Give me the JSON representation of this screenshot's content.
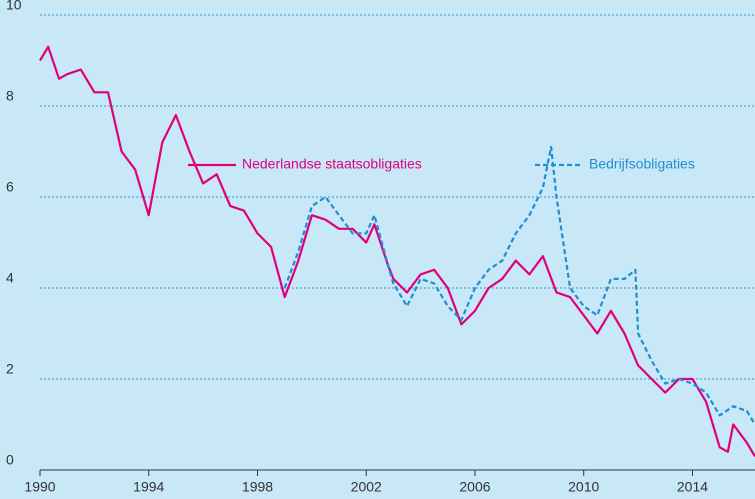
{
  "chart_data": {
    "type": "line",
    "xlim": [
      1990,
      2016.3
    ],
    "ylim": [
      0,
      10
    ],
    "xticks": [
      1990,
      1994,
      1998,
      2002,
      2006,
      2010,
      2014
    ],
    "yticks": [
      0,
      2,
      4,
      6,
      8,
      10
    ],
    "grid": true,
    "series": [
      {
        "name": "Nederlandse staatsobligaties",
        "color": "#e0007a",
        "dash": false,
        "x": [
          1990,
          1990.3,
          1990.7,
          1991,
          1991.5,
          1992,
          1992.5,
          1993,
          1993.5,
          1994,
          1994.5,
          1995,
          1995.5,
          1996,
          1996.5,
          1997,
          1997.5,
          1998,
          1998.5,
          1999,
          1999.5,
          2000,
          2000.5,
          2001,
          2001.5,
          2002,
          2002.3,
          2002.8,
          2003,
          2003.5,
          2004,
          2004.5,
          2005,
          2005.5,
          2006,
          2006.5,
          2007,
          2007.5,
          2008,
          2008.5,
          2009,
          2009.5,
          2010,
          2010.5,
          2011,
          2011.5,
          2012,
          2012.5,
          2013,
          2013.5,
          2014,
          2014.5,
          2015,
          2015.3,
          2015.5,
          2016,
          2016.3
        ],
        "values": [
          9.0,
          9.3,
          8.6,
          8.7,
          8.8,
          8.3,
          8.3,
          7.0,
          6.6,
          5.6,
          7.2,
          7.8,
          7.0,
          6.3,
          6.5,
          5.8,
          5.7,
          5.2,
          4.9,
          3.8,
          4.6,
          5.6,
          5.5,
          5.3,
          5.3,
          5.0,
          5.4,
          4.5,
          4.2,
          3.9,
          4.3,
          4.4,
          4.0,
          3.2,
          3.5,
          4.0,
          4.2,
          4.6,
          4.3,
          4.7,
          3.9,
          3.8,
          3.4,
          3.0,
          3.5,
          3.0,
          2.3,
          2.0,
          1.7,
          2.0,
          2.0,
          1.5,
          0.5,
          0.4,
          1.0,
          0.6,
          0.3
        ]
      },
      {
        "name": "Bedrijfsobligaties",
        "color": "#1f8fd0",
        "dash": true,
        "x": [
          1999,
          1999.5,
          2000,
          2000.5,
          2001,
          2001.5,
          2002,
          2002.3,
          2002.8,
          2003,
          2003.5,
          2004,
          2004.5,
          2005,
          2005.5,
          2006,
          2006.5,
          2007,
          2007.5,
          2008,
          2008.5,
          2008.8,
          2009,
          2009.5,
          2010,
          2010.5,
          2011,
          2011.5,
          2011.9,
          2012,
          2012.5,
          2013,
          2013.5,
          2014,
          2014.5,
          2015,
          2015.5,
          2016,
          2016.3
        ],
        "values": [
          4.0,
          4.8,
          5.8,
          6.0,
          5.6,
          5.2,
          5.2,
          5.6,
          4.5,
          4.1,
          3.6,
          4.2,
          4.1,
          3.6,
          3.3,
          4.0,
          4.4,
          4.6,
          5.2,
          5.6,
          6.2,
          7.1,
          6.0,
          4.0,
          3.6,
          3.4,
          4.2,
          4.2,
          4.4,
          3.0,
          2.4,
          1.9,
          2.0,
          1.9,
          1.7,
          1.2,
          1.4,
          1.3,
          1.0
        ]
      }
    ]
  }
}
